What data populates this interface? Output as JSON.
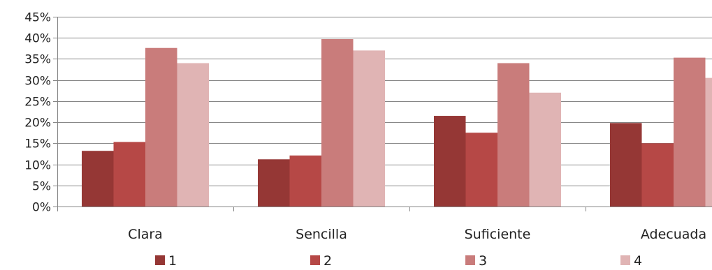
{
  "chart_data": {
    "type": "bar",
    "categories": [
      "Clara",
      "Sencilla",
      "Suficiente",
      "Adecuada"
    ],
    "series": [
      {
        "name": "1",
        "color": "#953735",
        "values": [
          13.2,
          11.2,
          21.5,
          19.8
        ]
      },
      {
        "name": "2",
        "color": "#b64846",
        "values": [
          15.3,
          12.1,
          17.5,
          15.0
        ]
      },
      {
        "name": "3",
        "color": "#c97c7b",
        "values": [
          37.6,
          39.7,
          34.0,
          35.3
        ]
      },
      {
        "name": "4",
        "color": "#e0b4b4",
        "values": [
          34.0,
          37.0,
          27.0,
          30.5
        ]
      }
    ],
    "ylim": [
      0,
      45
    ],
    "ytick_values": [
      0,
      5,
      10,
      15,
      20,
      25,
      30,
      35,
      40,
      45
    ],
    "ytick_labels": [
      "0%",
      "5%",
      "10%",
      "15%",
      "20%",
      "25%",
      "30%",
      "35%",
      "40%",
      "45%"
    ],
    "grid": true,
    "legend_position": "bottom"
  }
}
